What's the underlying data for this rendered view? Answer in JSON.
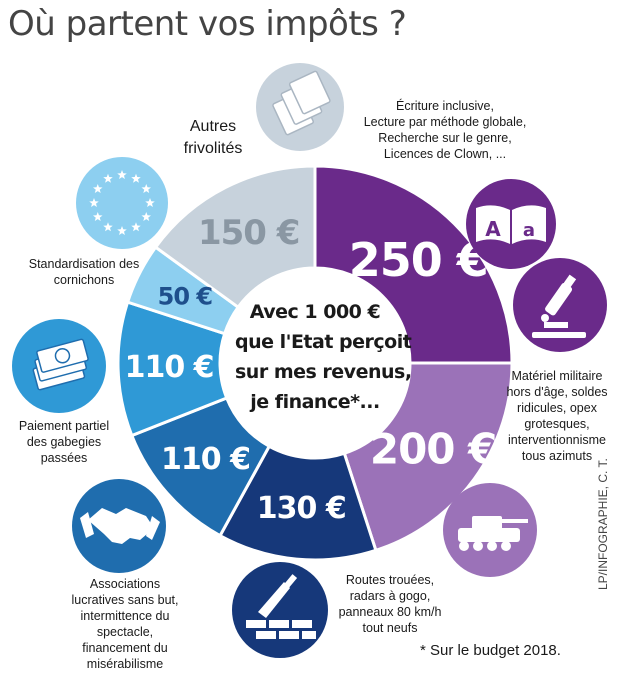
{
  "title": "Où partent vos impôts ?",
  "center_text": [
    "Avec 1 000 €",
    "que l'Etat perçoit",
    "sur mes revenus,",
    "je finance*..."
  ],
  "footnote": "* Sur le budget 2018.",
  "credit": "LP/INFOGRAPHIE, C. T.",
  "chart_data": {
    "type": "pie",
    "title": "Où partent vos impôts ?",
    "total": 1000,
    "unit": "€",
    "slices": [
      {
        "value_label": "250 €",
        "value": 250,
        "color": "#6a2a8a",
        "text_color": "#ffffff",
        "description": [
          "Écriture inclusive,",
          "Lecture par méthode globale,",
          "Recherche sur le genre,",
          "Licences de Clown, ..."
        ],
        "icons": [
          "book-icon",
          "microscope-icon"
        ]
      },
      {
        "value_label": "200 €",
        "value": 200,
        "color": "#9b72b8",
        "text_color": "#ffffff",
        "description": [
          "Matériel militaire",
          "hors d'âge, soldes",
          "ridicules, opex",
          "grotesques,",
          "interventionnisme",
          "tous azimuts"
        ],
        "icons": [
          "tank-icon"
        ]
      },
      {
        "value_label": "130 €",
        "value": 130,
        "color": "#16387a",
        "text_color": "#ffffff",
        "description": [
          "Routes trouées,",
          "radars à gogo,",
          "panneaux 80 km/h",
          "tout neufs"
        ],
        "icons": [
          "trowel-bricks-icon"
        ]
      },
      {
        "value_label": "110 €",
        "value": 110,
        "color": "#1f6dae",
        "text_color": "#ffffff",
        "description": [
          "Associations",
          "lucratives sans but,",
          "intermittence du",
          "spectacle,",
          "financement du",
          "misérabilisme"
        ],
        "icons": [
          "handshake-icon"
        ]
      },
      {
        "value_label": "110 €",
        "value": 110,
        "color": "#2f99d6",
        "text_color": "#ffffff",
        "description": [
          "Paiement partiel",
          "des gabegies",
          "passées"
        ],
        "icons": [
          "money-stack-icon"
        ]
      },
      {
        "value_label": "50 €",
        "value": 50,
        "color": "#8dcff0",
        "text_color": "#1e4f8c",
        "description": [
          "Standardisation des",
          "cornichons"
        ],
        "icons": [
          "eu-flag-icon"
        ]
      },
      {
        "value_label": "150 €",
        "value": 150,
        "color": "#c7d2dc",
        "text_color": "#8a97a3",
        "description": [
          "Autres",
          "frivolités"
        ],
        "icons": [
          "banknotes-icon"
        ]
      }
    ]
  }
}
